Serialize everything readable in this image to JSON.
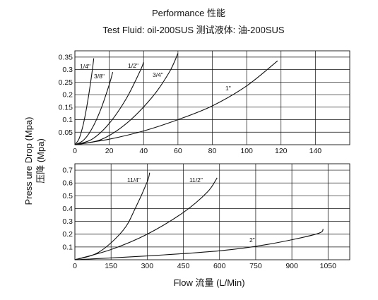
{
  "title": "Performance 性能",
  "subtitle": "Test Fluid: oil-200SUS 测试液体:  油-200SUS",
  "ylabel": "Press ure Drop (Mpa)",
  "ylabel_cn": "压降 (Mpa)",
  "xlabel": "Flow 流量 (L/Min)",
  "chart_data": [
    {
      "type": "line",
      "xlim": [
        0,
        160
      ],
      "ylim": [
        0,
        0.375
      ],
      "x_ticks": [
        0,
        20,
        40,
        60,
        80,
        100,
        120,
        140
      ],
      "y_ticks": [
        0.05,
        0.1,
        0.15,
        0.2,
        0.25,
        0.3,
        0.35
      ],
      "x_tick_labels": [
        "0",
        "20",
        "40",
        "60",
        "80",
        "100",
        "120",
        "140"
      ],
      "y_tick_labels": [
        "0.05",
        "0.1",
        "0.15",
        "0.2",
        "0.25",
        "0.3",
        "0.35"
      ],
      "grid": true,
      "series": [
        {
          "name": "1/4\"",
          "x": [
            0,
            2.5,
            5,
            7.5,
            10,
            11
          ],
          "y": [
            0,
            0.025,
            0.085,
            0.175,
            0.29,
            0.345
          ]
        },
        {
          "name": "3/8\"",
          "x": [
            0,
            5,
            10,
            15,
            20,
            22
          ],
          "y": [
            0,
            0.018,
            0.065,
            0.14,
            0.24,
            0.29
          ]
        },
        {
          "name": "1/2\"",
          "x": [
            0,
            10,
            20,
            30,
            38,
            40
          ],
          "y": [
            0,
            0.022,
            0.085,
            0.185,
            0.295,
            0.33
          ]
        },
        {
          "name": "3/4\"",
          "x": [
            0,
            15,
            30,
            45,
            55,
            60
          ],
          "y": [
            0,
            0.02,
            0.085,
            0.19,
            0.29,
            0.365
          ]
        },
        {
          "name": "1\"",
          "x": [
            0,
            20,
            40,
            60,
            80,
            100,
            118
          ],
          "y": [
            0,
            0.022,
            0.055,
            0.1,
            0.155,
            0.235,
            0.335
          ]
        }
      ]
    },
    {
      "type": "line",
      "xlim": [
        0,
        1140
      ],
      "ylim": [
        0,
        0.75
      ],
      "x_ticks": [
        0,
        150,
        300,
        450,
        600,
        750,
        900,
        1050
      ],
      "y_ticks": [
        0.1,
        0.2,
        0.3,
        0.4,
        0.5,
        0.6,
        0.7
      ],
      "x_tick_labels": [
        "0",
        "150",
        "300",
        "450",
        "600",
        "750",
        "900",
        "1050"
      ],
      "y_tick_labels": [
        "0.1",
        "0.2",
        "0.3",
        "0.4",
        "0.5",
        "0.6",
        "0.7"
      ],
      "grid": true,
      "series": [
        {
          "name": "11/4\"",
          "x": [
            0,
            100,
            200,
            250,
            300,
            310
          ],
          "y": [
            0,
            0.06,
            0.23,
            0.4,
            0.61,
            0.68
          ]
        },
        {
          "name": "11/2\"",
          "x": [
            0,
            150,
            300,
            450,
            550,
            590
          ],
          "y": [
            0,
            0.08,
            0.2,
            0.37,
            0.53,
            0.64
          ]
        },
        {
          "name": "2\"",
          "x": [
            0,
            300,
            600,
            800,
            1000,
            1030
          ],
          "y": [
            0,
            0.03,
            0.07,
            0.12,
            0.2,
            0.24
          ]
        }
      ]
    }
  ]
}
